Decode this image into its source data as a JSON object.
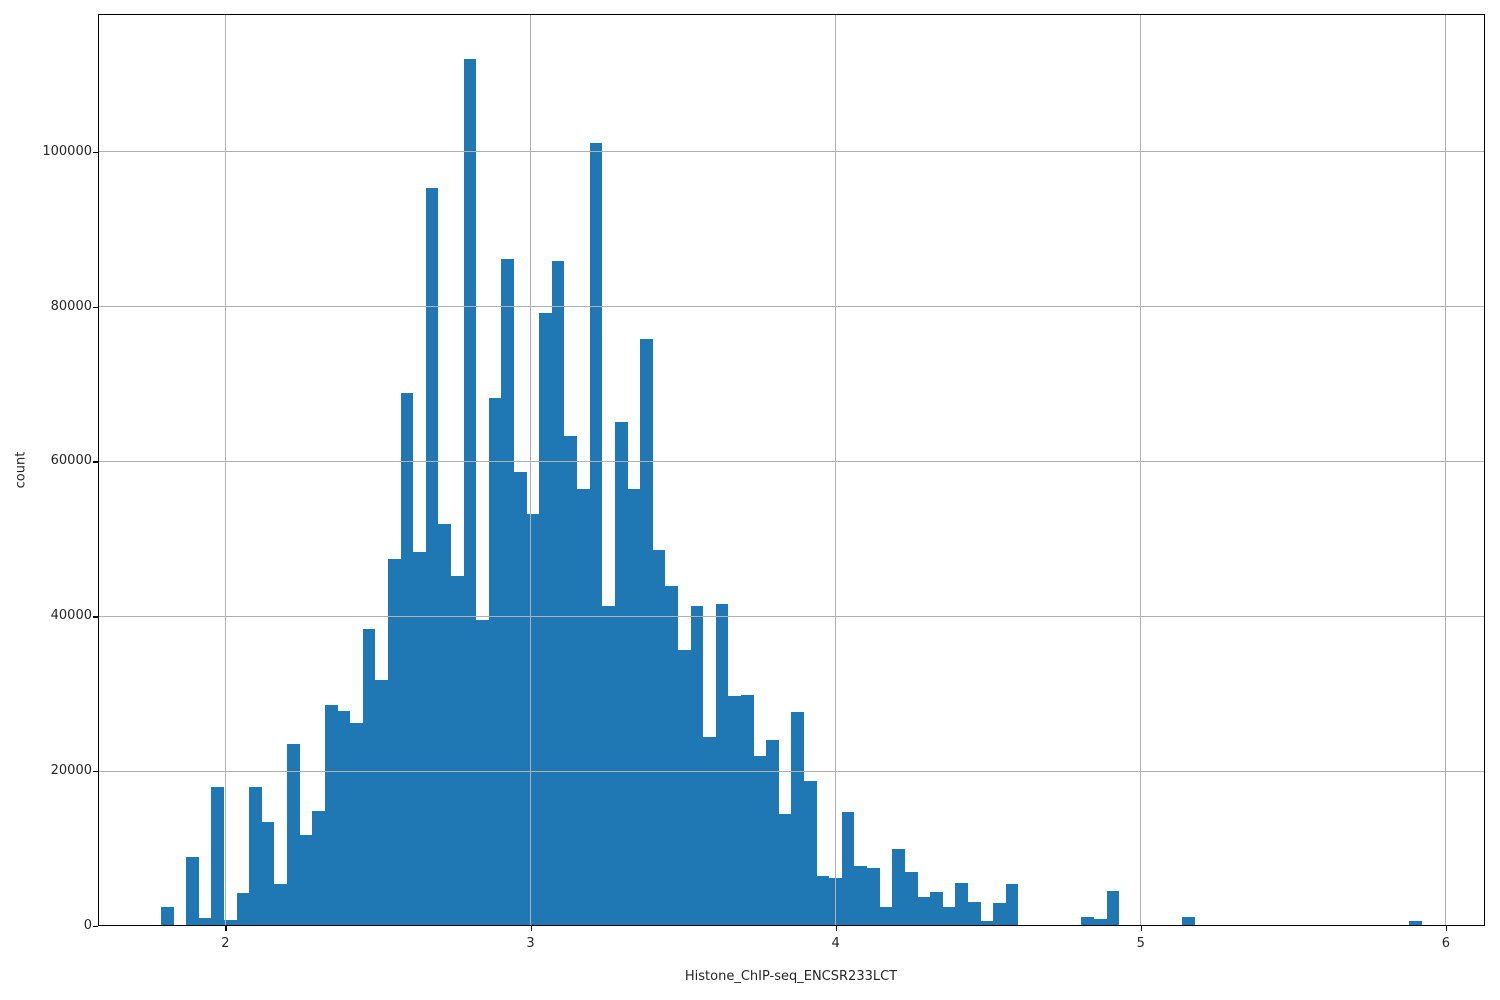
{
  "figure": {
    "title": "",
    "xlabel": "Histone_ChIP-seq_ENCSR233LCT",
    "ylabel": "count",
    "background": "#ffffff",
    "bar_color": "#1f77b4",
    "grid_color": "#b0b0b0",
    "spine_color": "#000000",
    "text_color": "#262626"
  },
  "chart_data": {
    "type": "bar",
    "subtype": "histogram",
    "title": "",
    "xlabel": "Histone_ChIP-seq_ENCSR233LCT",
    "ylabel": "count",
    "grid": true,
    "legend": false,
    "xlim": [
      1.5825,
      6.128
    ],
    "ylim": [
      0,
      117800
    ],
    "xticks": [
      2,
      3,
      4,
      5,
      6
    ],
    "xtick_labels": [
      "2",
      "3",
      "4",
      "5",
      "6"
    ],
    "yticks": [
      0,
      20000,
      40000,
      60000,
      80000,
      100000
    ],
    "ytick_labels": [
      "0",
      "20000",
      "40000",
      "60000",
      "80000",
      "100000"
    ],
    "bin_start": 1.789,
    "bin_width": 0.04132,
    "counts": [
      2500,
      0,
      8900,
      1000,
      18000,
      800,
      4200,
      18000,
      13400,
      5400,
      23500,
      11800,
      14900,
      28600,
      27800,
      26200,
      38300,
      31800,
      47400,
      68900,
      48300,
      95300,
      51900,
      45200,
      112000,
      39500,
      68200,
      86200,
      58600,
      53200,
      79200,
      85900,
      63300,
      56500,
      101200,
      41300,
      65100,
      56400,
      75800,
      48600,
      43900,
      35600,
      41300,
      24400,
      41600,
      29700,
      29900,
      22000,
      24000,
      14500,
      27600,
      18700,
      6400,
      6200,
      14700,
      7700,
      7500,
      2400,
      10000,
      7000,
      3700,
      4400,
      2400,
      5500,
      3100,
      700,
      3000,
      5400,
      0,
      0,
      0,
      0,
      0,
      1100,
      900,
      4500,
      0,
      0,
      0,
      0,
      0,
      1100,
      0,
      0,
      0,
      0,
      0,
      0,
      0,
      0,
      0,
      0,
      0,
      0,
      0,
      0,
      0,
      0,
      0,
      700
    ]
  }
}
